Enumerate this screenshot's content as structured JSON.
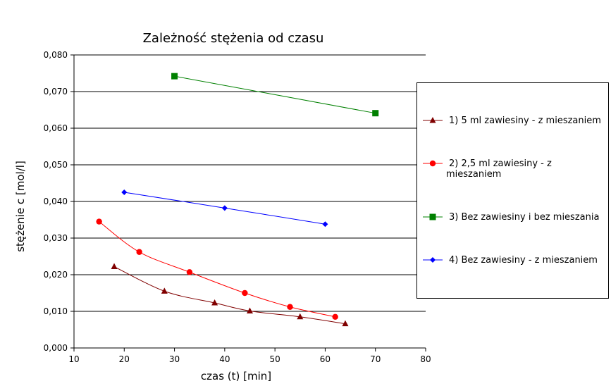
{
  "chart_data": {
    "type": "line",
    "title": "Zależność stężenia od czasu",
    "xlabel": "czas (t) [min]",
    "ylabel": "stężenie c [mol/l]",
    "xlim": [
      10,
      80
    ],
    "ylim": [
      0,
      0.08
    ],
    "x_ticks": [
      10,
      20,
      30,
      40,
      50,
      60,
      70,
      80
    ],
    "x_tick_labels": [
      "10",
      "20",
      "30",
      "40",
      "50",
      "60",
      "70",
      "80"
    ],
    "y_ticks": [
      0,
      0.01,
      0.02,
      0.03,
      0.04,
      0.05,
      0.06,
      0.07,
      0.08
    ],
    "y_tick_labels": [
      "0,000",
      "0,010",
      "0,020",
      "0,030",
      "0,040",
      "0,050",
      "0,060",
      "0,070",
      "0,080"
    ],
    "grid": "horizontal",
    "legend_position": "right",
    "series": [
      {
        "name": "1)   5 ml zawiesiny - z mieszaniem",
        "legend_lines": [
          "1)   5 ml zawiesiny - z mieszaniem"
        ],
        "color": "#800000",
        "marker": "triangle",
        "x": [
          18,
          28,
          38,
          45,
          55,
          64
        ],
        "y": [
          0.0222,
          0.0155,
          0.0123,
          0.0101,
          0.0085,
          0.0066
        ]
      },
      {
        "name": "2)    2,5 ml zawiesiny - z mieszaniem",
        "legend_lines": [
          "2)    2,5 ml zawiesiny - z",
          "mieszaniem"
        ],
        "color": "#ff0000",
        "marker": "circle",
        "x": [
          15,
          23,
          33,
          44,
          53,
          62
        ],
        "y": [
          0.0345,
          0.0262,
          0.0207,
          0.015,
          0.0112,
          0.0085
        ]
      },
      {
        "name": "3)   Bez zawiesiny i bez mieszania",
        "legend_lines": [
          "3)   Bez zawiesiny i bez mieszania"
        ],
        "color": "#008000",
        "marker": "square",
        "x": [
          30,
          70
        ],
        "y": [
          0.0742,
          0.0641
        ]
      },
      {
        "name": "4)   Bez zawiesiny - z mieszaniem",
        "legend_lines": [
          "4)   Bez zawiesiny - z mieszaniem"
        ],
        "color": "#0000ff",
        "marker": "diamond",
        "x": [
          20,
          40,
          60
        ],
        "y": [
          0.0425,
          0.0382,
          0.0338
        ]
      }
    ]
  }
}
